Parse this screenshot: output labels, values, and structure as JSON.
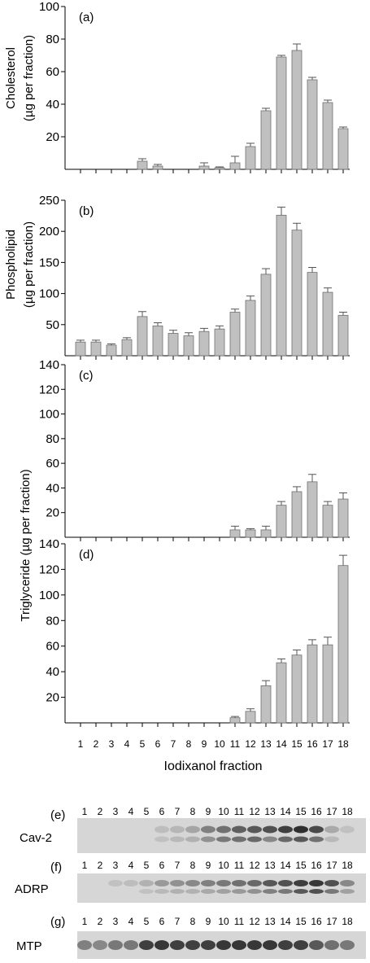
{
  "chart_data": [
    {
      "type": "bar",
      "panel": "(a)",
      "ylabel_line1": "Cholesterol",
      "ylabel_line2": "(µg per fraction)",
      "ylim": [
        0,
        100
      ],
      "yticks": [
        20,
        40,
        60,
        80,
        100
      ],
      "categories": [
        "1",
        "2",
        "3",
        "4",
        "5",
        "6",
        "7",
        "8",
        "9",
        "10",
        "11",
        "12",
        "13",
        "14",
        "15",
        "16",
        "17",
        "18"
      ],
      "values": [
        0,
        0,
        0,
        0,
        5,
        2,
        0,
        0,
        2,
        1,
        4,
        14,
        36,
        69,
        73,
        55,
        41,
        25
      ],
      "errors": [
        0,
        0,
        0,
        0,
        1.5,
        1,
        0,
        0,
        2,
        0.5,
        4,
        2,
        1.5,
        1,
        4,
        1.5,
        1.5,
        1
      ],
      "bar_color": "#c0c0c0"
    },
    {
      "type": "bar",
      "panel": "(b)",
      "ylabel_line1": "Phospholipid",
      "ylabel_line2": "(µg per fraction)",
      "ylim": [
        0,
        250
      ],
      "yticks": [
        50,
        100,
        150,
        200,
        250
      ],
      "categories": [
        "1",
        "2",
        "3",
        "4",
        "5",
        "6",
        "7",
        "8",
        "9",
        "10",
        "11",
        "12",
        "13",
        "14",
        "15",
        "16",
        "17",
        "18"
      ],
      "values": [
        22,
        22,
        17,
        26,
        63,
        48,
        36,
        32,
        39,
        43,
        70,
        89,
        131,
        226,
        202,
        134,
        102,
        65
      ],
      "errors": [
        3,
        3,
        2,
        3,
        8,
        5,
        5,
        5,
        5,
        5,
        5,
        7,
        9,
        13,
        11,
        8,
        7,
        5
      ],
      "bar_color": "#c0c0c0"
    },
    {
      "type": "bar",
      "panel": "(c)",
      "ylim": [
        0,
        140
      ],
      "yticks": [
        20,
        40,
        60,
        80,
        100,
        120,
        140
      ],
      "categories": [
        "1",
        "2",
        "3",
        "4",
        "5",
        "6",
        "7",
        "8",
        "9",
        "10",
        "11",
        "12",
        "13",
        "14",
        "15",
        "16",
        "17",
        "18"
      ],
      "values": [
        0,
        0,
        0,
        0,
        0,
        0,
        0,
        0,
        0,
        0,
        6,
        6,
        6,
        26,
        37,
        45,
        26,
        31
      ],
      "errors": [
        0,
        0,
        0,
        0,
        0,
        0,
        0,
        0,
        0,
        0,
        3,
        1,
        3,
        3,
        4,
        6,
        3,
        5
      ],
      "bar_color": "#c0c0c0"
    },
    {
      "type": "bar",
      "panel": "(d)",
      "ylim": [
        0,
        140
      ],
      "yticks": [
        20,
        40,
        60,
        80,
        100,
        120,
        140
      ],
      "categories": [
        "1",
        "2",
        "3",
        "4",
        "5",
        "6",
        "7",
        "8",
        "9",
        "10",
        "11",
        "12",
        "13",
        "14",
        "15",
        "16",
        "17",
        "18"
      ],
      "values": [
        0,
        0,
        0,
        0,
        0,
        0,
        0,
        0,
        0,
        0,
        4,
        9,
        29,
        47,
        53,
        61,
        61,
        123
      ],
      "errors": [
        0,
        0,
        0,
        0,
        0,
        0,
        0,
        0,
        0,
        0,
        1,
        2,
        4,
        3,
        4,
        4,
        6,
        8
      ],
      "bar_color": "#c0c0c0"
    }
  ],
  "shared_ylabel_cd": "Triglyceride (µg per fraction)",
  "xlabel": "Iodixanol fraction",
  "blots": [
    {
      "panel": "(e)",
      "label": "Cav-2",
      "lanes": [
        "1",
        "2",
        "3",
        "4",
        "5",
        "6",
        "7",
        "8",
        "9",
        "10",
        "11",
        "12",
        "13",
        "14",
        "15",
        "16",
        "17",
        "18"
      ]
    },
    {
      "panel": "(f)",
      "label": "ADRP",
      "lanes": [
        "1",
        "2",
        "3",
        "4",
        "5",
        "6",
        "7",
        "8",
        "9",
        "10",
        "11",
        "12",
        "13",
        "14",
        "15",
        "16",
        "17",
        "18"
      ]
    },
    {
      "panel": "(g)",
      "label": "MTP",
      "lanes": [
        "1",
        "2",
        "3",
        "4",
        "5",
        "6",
        "7",
        "8",
        "9",
        "10",
        "11",
        "12",
        "13",
        "14",
        "15",
        "16",
        "17",
        "18"
      ]
    }
  ],
  "blot_intensity": {
    "cav2_upper": [
      0,
      0,
      0,
      0,
      0,
      0.08,
      0.12,
      0.22,
      0.45,
      0.55,
      0.65,
      0.7,
      0.75,
      0.85,
      0.95,
      0.8,
      0.2,
      0.05
    ],
    "cav2_lower": [
      0,
      0,
      0,
      0,
      0,
      0.05,
      0.1,
      0.15,
      0.35,
      0.5,
      0.55,
      0.6,
      0.4,
      0.6,
      0.7,
      0.55,
      0.1,
      0
    ],
    "adrp_upper": [
      0,
      0,
      0.05,
      0.08,
      0.15,
      0.3,
      0.35,
      0.4,
      0.45,
      0.5,
      0.55,
      0.6,
      0.7,
      0.75,
      0.85,
      0.9,
      0.75,
      0.4
    ],
    "adrp_lower": [
      0,
      0,
      0,
      0,
      0.05,
      0.1,
      0.15,
      0.15,
      0.2,
      0.25,
      0.3,
      0.35,
      0.45,
      0.5,
      0.7,
      0.75,
      0.5,
      0.25
    ],
    "mtp": [
      0.45,
      0.4,
      0.5,
      0.5,
      0.85,
      0.9,
      0.85,
      0.85,
      0.85,
      0.9,
      0.9,
      0.9,
      0.9,
      0.85,
      0.85,
      0.7,
      0.55,
      0.5
    ]
  }
}
